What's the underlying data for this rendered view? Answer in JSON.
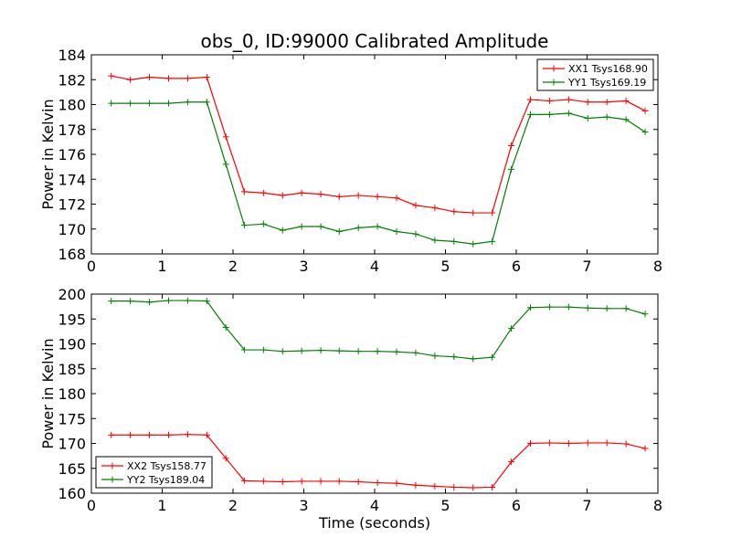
{
  "chart_data": [
    {
      "type": "line",
      "title": "obs_0, ID:99000 Calibrated Amplitude",
      "xlabel": "",
      "ylabel": "Power in Kelvin",
      "xlim": [
        0,
        8
      ],
      "ylim": [
        168,
        184
      ],
      "xticks": [
        "0",
        "1",
        "2",
        "3",
        "4",
        "5",
        "6",
        "7",
        "8"
      ],
      "yticks": [
        "168",
        "170",
        "172",
        "174",
        "176",
        "178",
        "180",
        "182",
        "184"
      ],
      "grid": false,
      "legend_position": "top-right",
      "x": [
        0.28,
        0.55,
        0.82,
        1.09,
        1.36,
        1.63,
        1.9,
        2.16,
        2.43,
        2.7,
        2.97,
        3.24,
        3.5,
        3.77,
        4.04,
        4.31,
        4.58,
        4.85,
        5.12,
        5.39,
        5.66,
        5.93,
        6.2,
        6.47,
        6.74,
        7.01,
        7.28,
        7.55,
        7.82
      ],
      "series": [
        {
          "name": "XX1 Tsys168.90",
          "color": "#ff0000",
          "values": [
            182.3,
            182.0,
            182.2,
            182.1,
            182.1,
            182.2,
            177.4,
            173.0,
            172.9,
            172.7,
            172.9,
            172.8,
            172.6,
            172.7,
            172.6,
            172.5,
            171.9,
            171.7,
            171.4,
            171.3,
            171.3,
            176.7,
            180.4,
            180.3,
            180.4,
            180.2,
            180.2,
            180.3,
            179.5
          ]
        },
        {
          "name": "YY1 Tsys169.19",
          "color": "#008000",
          "values": [
            180.1,
            180.1,
            180.1,
            180.1,
            180.2,
            180.2,
            175.2,
            170.3,
            170.4,
            169.9,
            170.2,
            170.2,
            169.8,
            170.1,
            170.2,
            169.8,
            169.6,
            169.1,
            169.0,
            168.8,
            169.0,
            174.8,
            179.2,
            179.2,
            179.3,
            178.9,
            179.0,
            178.8,
            177.8
          ]
        }
      ]
    },
    {
      "type": "line",
      "title": "",
      "xlabel": "Time (seconds)",
      "ylabel": "Power in Kelvin",
      "xlim": [
        0,
        8
      ],
      "ylim": [
        160,
        200
      ],
      "xticks": [
        "0",
        "1",
        "2",
        "3",
        "4",
        "5",
        "6",
        "7",
        "8"
      ],
      "yticks": [
        "160",
        "165",
        "170",
        "175",
        "180",
        "185",
        "190",
        "195",
        "200"
      ],
      "grid": false,
      "legend_position": "bottom-left",
      "x": [
        0.28,
        0.55,
        0.82,
        1.09,
        1.36,
        1.63,
        1.9,
        2.16,
        2.43,
        2.7,
        2.97,
        3.24,
        3.5,
        3.77,
        4.04,
        4.31,
        4.58,
        4.85,
        5.12,
        5.39,
        5.66,
        5.93,
        6.2,
        6.47,
        6.74,
        7.01,
        7.28,
        7.55,
        7.82
      ],
      "series": [
        {
          "name": "XX2 Tsys158.77",
          "color": "#ff0000",
          "values": [
            171.7,
            171.7,
            171.7,
            171.7,
            171.8,
            171.7,
            167.0,
            162.5,
            162.4,
            162.3,
            162.4,
            162.4,
            162.4,
            162.3,
            162.1,
            162.0,
            161.6,
            161.4,
            161.2,
            161.1,
            161.2,
            166.3,
            170.0,
            170.1,
            170.0,
            170.1,
            170.1,
            169.9,
            169.0
          ]
        },
        {
          "name": "YY2 Tsys189.04",
          "color": "#008000",
          "values": [
            198.6,
            198.6,
            198.4,
            198.7,
            198.7,
            198.6,
            193.3,
            188.8,
            188.8,
            188.5,
            188.6,
            188.7,
            188.6,
            188.5,
            188.5,
            188.4,
            188.2,
            187.6,
            187.4,
            187.0,
            187.3,
            193.1,
            197.3,
            197.4,
            197.4,
            197.2,
            197.1,
            197.1,
            196.0
          ]
        }
      ]
    }
  ]
}
